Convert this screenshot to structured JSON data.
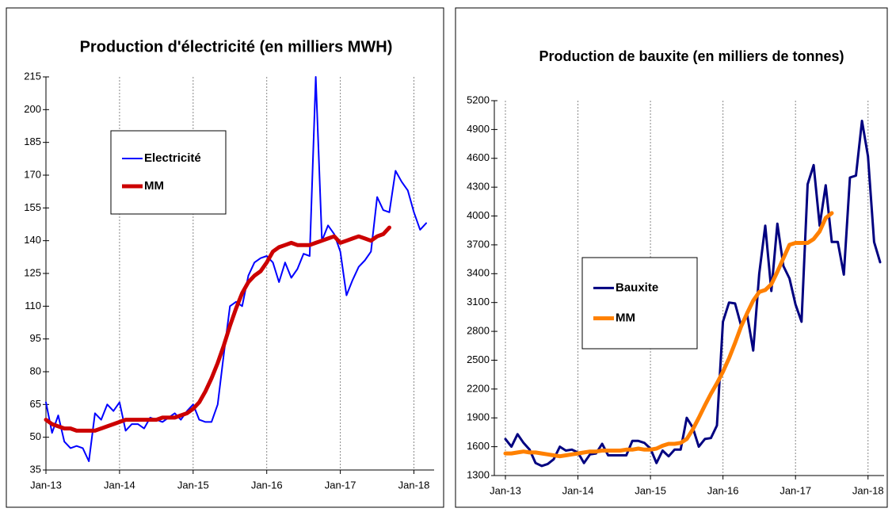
{
  "chart_data": [
    {
      "type": "line",
      "title": "Production d'électricité  (en milliers  MWH)",
      "categories": [
        "Jan-13",
        null,
        null,
        null,
        null,
        null,
        null,
        null,
        null,
        null,
        null,
        null,
        "Jan-14",
        null,
        null,
        null,
        null,
        null,
        null,
        null,
        null,
        null,
        null,
        null,
        "Jan-15",
        null,
        null,
        null,
        null,
        null,
        null,
        null,
        null,
        null,
        null,
        null,
        "Jan-16",
        null,
        null,
        null,
        null,
        null,
        null,
        null,
        null,
        null,
        null,
        null,
        "Jan-17",
        null,
        null,
        null,
        null,
        null,
        null,
        null,
        null,
        null,
        null,
        null,
        "Jan-18",
        null,
        null
      ],
      "series": [
        {
          "name": "Electricité",
          "color": "#0000ff",
          "values": [
            66,
            52,
            60,
            48,
            45,
            46,
            45,
            39,
            61,
            58,
            65,
            62,
            66,
            53,
            56,
            56,
            54,
            59,
            58,
            57,
            59,
            61,
            58,
            62,
            65,
            58,
            57,
            57,
            65,
            88,
            110,
            112,
            110,
            124,
            130,
            132,
            133,
            130,
            121,
            130,
            123,
            127,
            134,
            133,
            215,
            140,
            147,
            143,
            135,
            115,
            122,
            128,
            131,
            135,
            160,
            154,
            153,
            172,
            167,
            163,
            153,
            145,
            148
          ]
        },
        {
          "name": "MM",
          "color": "#cc0000",
          "values": [
            58,
            56,
            55,
            54,
            54,
            53,
            53,
            53,
            53,
            54,
            55,
            56,
            57,
            58,
            58,
            58,
            58,
            58,
            58,
            59,
            59,
            59,
            60,
            61,
            63,
            66,
            71,
            77,
            84,
            92,
            101,
            109,
            116,
            121,
            124,
            126,
            130,
            135,
            137,
            138,
            139,
            138,
            138,
            138,
            139,
            140,
            141,
            142,
            139,
            140,
            141,
            142,
            141,
            140,
            142,
            143,
            146,
            null,
            null,
            null,
            null,
            null,
            null
          ]
        }
      ],
      "ylim": [
        35,
        215
      ],
      "yticks": [
        35,
        50,
        65,
        80,
        95,
        110,
        125,
        140,
        155,
        170,
        185,
        200,
        215
      ],
      "grid": "x"
    },
    {
      "type": "line",
      "title": "Production de bauxite (en milliers de tonnes)",
      "categories": [
        "Jan-13",
        null,
        null,
        null,
        null,
        null,
        null,
        null,
        null,
        null,
        null,
        null,
        "Jan-14",
        null,
        null,
        null,
        null,
        null,
        null,
        null,
        null,
        null,
        null,
        null,
        "Jan-15",
        null,
        null,
        null,
        null,
        null,
        null,
        null,
        null,
        null,
        null,
        null,
        "Jan-16",
        null,
        null,
        null,
        null,
        null,
        null,
        null,
        null,
        null,
        null,
        null,
        "Jan-17",
        null,
        null,
        null,
        null,
        null,
        null,
        null,
        null,
        null,
        null,
        null,
        "Jan-18",
        null,
        null
      ],
      "series": [
        {
          "name": "Bauxite",
          "color": "#000080",
          "values": [
            1680,
            1600,
            1730,
            1640,
            1570,
            1430,
            1400,
            1420,
            1470,
            1600,
            1560,
            1570,
            1540,
            1430,
            1520,
            1530,
            1630,
            1510,
            1510,
            1510,
            1510,
            1660,
            1660,
            1640,
            1580,
            1430,
            1560,
            1500,
            1570,
            1570,
            1900,
            1800,
            1600,
            1680,
            1690,
            1820,
            2900,
            3100,
            3090,
            2860,
            2970,
            2600,
            3400,
            3900,
            3220,
            3920,
            3480,
            3350,
            3080,
            2900,
            4330,
            4530,
            3900,
            4320,
            3730,
            3730,
            3390,
            4400,
            4420,
            4990,
            4620,
            3730,
            3520
          ]
        },
        {
          "name": "MM",
          "color": "#ff8000",
          "values": [
            1530,
            1530,
            1540,
            1550,
            1540,
            1540,
            1530,
            1520,
            1510,
            1500,
            1510,
            1520,
            1530,
            1540,
            1550,
            1550,
            1560,
            1560,
            1560,
            1560,
            1570,
            1570,
            1580,
            1570,
            1570,
            1580,
            1610,
            1630,
            1630,
            1640,
            1680,
            1780,
            1900,
            2030,
            2150,
            2260,
            2380,
            2520,
            2680,
            2850,
            2990,
            3120,
            3210,
            3230,
            3290,
            3420,
            3560,
            3700,
            3720,
            3720,
            3720,
            3760,
            3840,
            3980,
            4030,
            null,
            null,
            null,
            null,
            null,
            null,
            null,
            null
          ]
        }
      ],
      "ylim": [
        1300,
        5200
      ],
      "yticks": [
        1300,
        1600,
        1900,
        2200,
        2500,
        2800,
        3100,
        3400,
        3700,
        4000,
        4300,
        4600,
        4900,
        5200
      ],
      "grid": "x"
    }
  ]
}
